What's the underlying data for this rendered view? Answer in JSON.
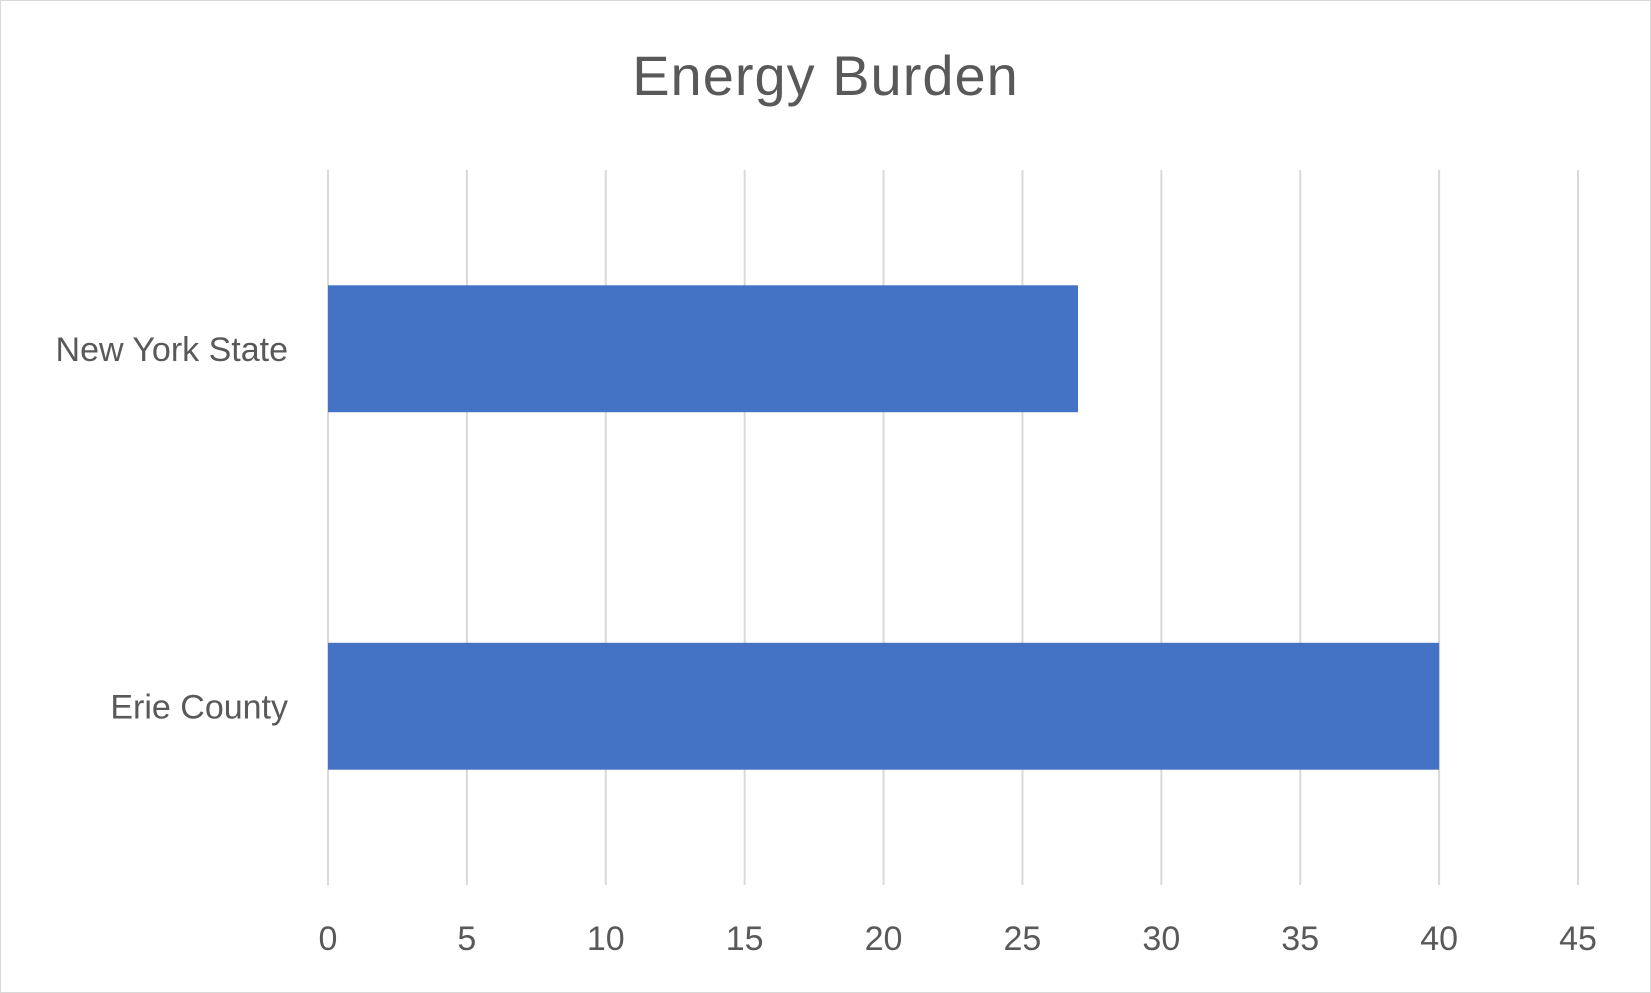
{
  "chart_data": {
    "type": "bar",
    "orientation": "horizontal",
    "title": "Energy Burden",
    "categories": [
      "Erie County",
      "New York State"
    ],
    "values": [
      40,
      27
    ],
    "xlim": [
      0,
      45
    ],
    "x_ticks": [
      "0",
      "5",
      "10",
      "15",
      "20",
      "25",
      "30",
      "35",
      "40",
      "45"
    ],
    "grid": "vertical",
    "legend": "none",
    "colors": {
      "bar": "#4472c4",
      "grid": "#d9d9d9",
      "text": "#595959"
    }
  }
}
